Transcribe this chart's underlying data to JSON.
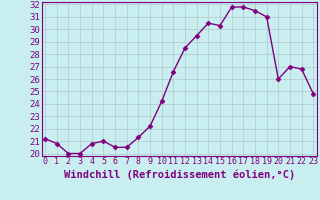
{
  "x": [
    0,
    1,
    2,
    3,
    4,
    5,
    6,
    7,
    8,
    9,
    10,
    11,
    12,
    13,
    14,
    15,
    16,
    17,
    18,
    19,
    20,
    21,
    22,
    23
  ],
  "y": [
    21.2,
    20.8,
    20.0,
    20.0,
    20.8,
    21.0,
    20.5,
    20.5,
    21.3,
    22.2,
    24.2,
    26.6,
    28.5,
    29.5,
    30.5,
    30.3,
    31.8,
    31.8,
    31.5,
    31.0,
    26.0,
    27.0,
    26.8,
    24.8
  ],
  "ylim_min": 19.8,
  "ylim_max": 32.2,
  "xlim_min": -0.3,
  "xlim_max": 23.3,
  "yticks": [
    20,
    21,
    22,
    23,
    24,
    25,
    26,
    27,
    28,
    29,
    30,
    31,
    32
  ],
  "xticks": [
    0,
    1,
    2,
    3,
    4,
    5,
    6,
    7,
    8,
    9,
    10,
    11,
    12,
    13,
    14,
    15,
    16,
    17,
    18,
    19,
    20,
    21,
    22,
    23
  ],
  "xlabel": "Windchill (Refroidissement éolien,°C)",
  "line_color": "#800080",
  "marker": "D",
  "marker_size": 2.5,
  "background_color": "#c8eef0",
  "plot_bg_color": "#c8eef0",
  "grid_color": "#b0c8cc",
  "spine_color": "#800080",
  "label_color": "#800080",
  "tick_label_color": "#800080",
  "xlabel_fontsize": 7.5,
  "ytick_fontsize": 6.5,
  "xtick_fontsize": 6.0,
  "linewidth": 1.0
}
